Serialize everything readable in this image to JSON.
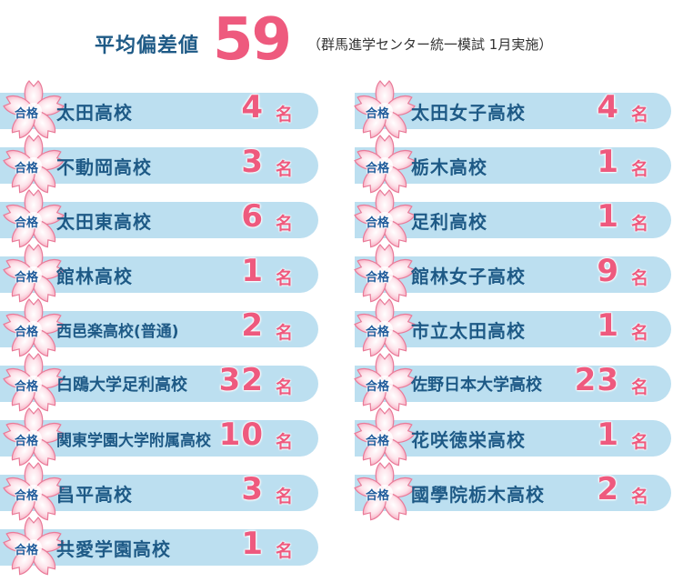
{
  "header": {
    "label": "平均偏差値",
    "score": "59",
    "note": "（群馬進学センター統一模試 1月実施）"
  },
  "badge_label": "合格",
  "unit_label": "名",
  "colors": {
    "accent_pink": "#ee5a7e",
    "text_blue": "#1e5a86",
    "bar_blue": "#bcdff0",
    "blossom_pink": "#f7b6c8"
  },
  "left_column": [
    {
      "school": "太田高校",
      "count": "4"
    },
    {
      "school": "不動岡高校",
      "count": "3"
    },
    {
      "school": "太田東高校",
      "count": "6"
    },
    {
      "school": "館林高校",
      "count": "1"
    },
    {
      "school": "西邑楽高校(普通)",
      "count": "2"
    },
    {
      "school": "白鴎大学足利高校",
      "count": "32"
    },
    {
      "school": "関東学園大学附属高校",
      "count": "10"
    },
    {
      "school": "昌平高校",
      "count": "3"
    },
    {
      "school": "共愛学園高校",
      "count": "1"
    }
  ],
  "right_column": [
    {
      "school": "太田女子高校",
      "count": "4"
    },
    {
      "school": "栃木高校",
      "count": "1"
    },
    {
      "school": "足利高校",
      "count": "1"
    },
    {
      "school": "館林女子高校",
      "count": "9"
    },
    {
      "school": "市立太田高校",
      "count": "1"
    },
    {
      "school": "佐野日本大学高校",
      "count": "23"
    },
    {
      "school": "花咲徳栄高校",
      "count": "1"
    },
    {
      "school": "國學院栃木高校",
      "count": "2"
    }
  ]
}
